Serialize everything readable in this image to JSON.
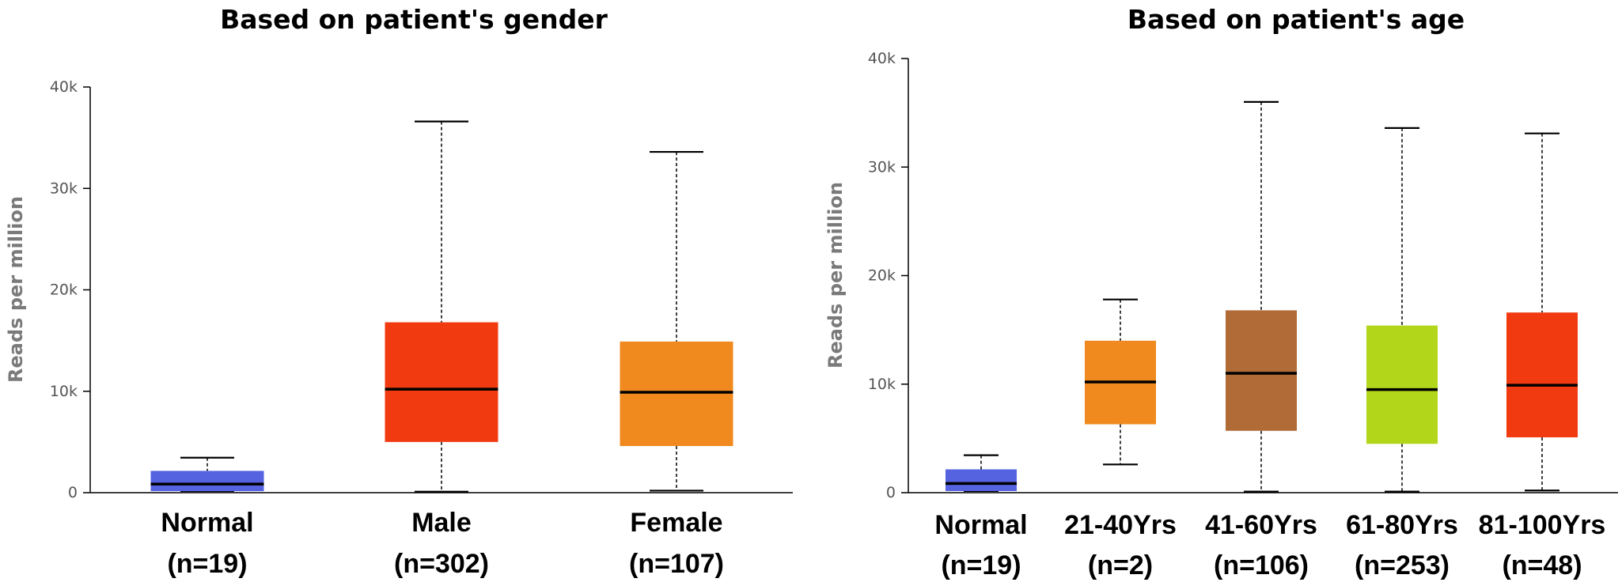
{
  "chart_data": [
    {
      "type": "boxplot",
      "title": "Based on patient's gender",
      "ylabel": "Reads per million",
      "ylim": [
        0,
        40000
      ],
      "yticks": [
        0,
        10000,
        20000,
        30000,
        40000
      ],
      "ytick_labels": [
        "0",
        "10k",
        "20k",
        "30k",
        "40k"
      ],
      "grid": false,
      "categories": [
        {
          "name": "Normal",
          "n": "(n=19)",
          "min": 150,
          "q1": 150,
          "median": 850,
          "q3": 2150,
          "max": 3450,
          "color": "#5563e0"
        },
        {
          "name": "Male",
          "n": "(n=302)",
          "min": 100,
          "q1": 5000,
          "median": 10200,
          "q3": 16800,
          "max": 36600,
          "color": "#f23a10"
        },
        {
          "name": "Female",
          "n": "(n=107)",
          "min": 200,
          "q1": 4600,
          "median": 9900,
          "q3": 14900,
          "max": 33600,
          "color": "#f08a1e"
        }
      ]
    },
    {
      "type": "boxplot",
      "title": "Based on patient's age",
      "ylabel": "Reads per million",
      "ylim": [
        0,
        40000
      ],
      "yticks": [
        0,
        10000,
        20000,
        30000,
        40000
      ],
      "ytick_labels": [
        "0",
        "10k",
        "20k",
        "30k",
        "40k"
      ],
      "grid": false,
      "categories": [
        {
          "name": "Normal",
          "n": "(n=19)",
          "min": 150,
          "q1": 150,
          "median": 850,
          "q3": 2150,
          "max": 3450,
          "color": "#5563e0"
        },
        {
          "name": "21-40Yrs",
          "n": "(n=2)",
          "min": 2600,
          "q1": 6300,
          "median": 10200,
          "q3": 14000,
          "max": 17800,
          "color": "#f08a1e"
        },
        {
          "name": "41-60Yrs",
          "n": "(n=106)",
          "min": 100,
          "q1": 5700,
          "median": 11000,
          "q3": 16800,
          "max": 36000,
          "color": "#b06b36"
        },
        {
          "name": "61-80Yrs",
          "n": "(n=253)",
          "min": 100,
          "q1": 4500,
          "median": 9500,
          "q3": 15400,
          "max": 33600,
          "color": "#b2d61a"
        },
        {
          "name": "81-100Yrs",
          "n": "(n=48)",
          "min": 200,
          "q1": 5100,
          "median": 9900,
          "q3": 16600,
          "max": 33100,
          "color": "#f23a10"
        }
      ]
    }
  ]
}
